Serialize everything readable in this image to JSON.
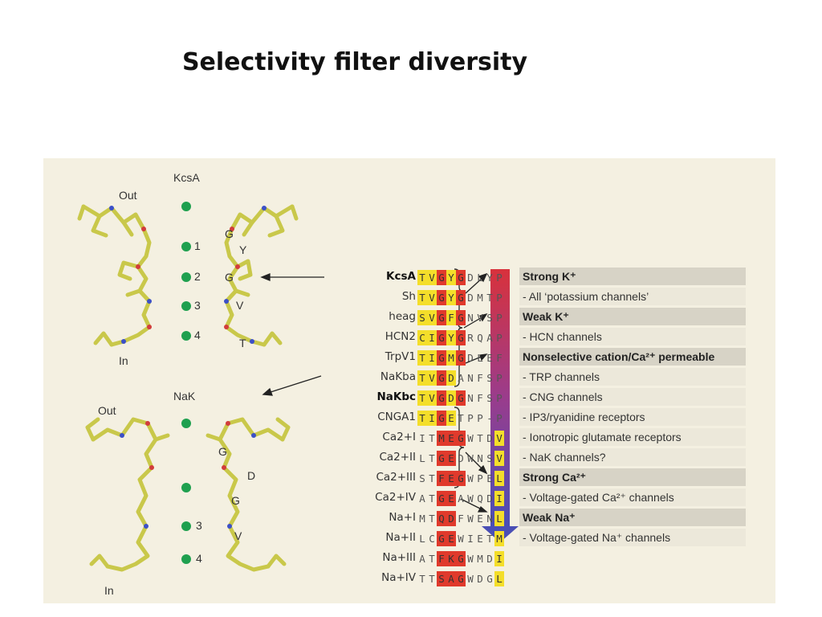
{
  "title": "Selectivity filter diversity",
  "structures": {
    "top": {
      "name": "KcsA",
      "out": "Out",
      "in": "In",
      "sites": [
        "1",
        "2",
        "3",
        "4"
      ],
      "residues": [
        "G",
        "Y",
        "G",
        "V",
        "T"
      ]
    },
    "bottom": {
      "name": "NaK",
      "out": "Out",
      "in": "In",
      "sites": [
        "3",
        "4"
      ],
      "residues": [
        "G",
        "D",
        "G",
        "V"
      ]
    }
  },
  "alignment": [
    {
      "name": "KcsA",
      "seq": "TVGYGDLYP",
      "bold": true
    },
    {
      "name": "Sh",
      "seq": "TVGYGDMTP"
    },
    {
      "name": "heag",
      "seq": "SVGFGNVSP"
    },
    {
      "name": "HCN2",
      "seq": "CIGYGRQAP"
    },
    {
      "name": "TrpV1",
      "seq": "TIGMGDLEF"
    },
    {
      "name": "NaKba",
      "seq": "TVGDANFSP"
    },
    {
      "name": "NaKbc",
      "seq": "TVGDGNFSP",
      "bold": true
    },
    {
      "name": "CNGA1",
      "seq": "TIGETPP-P"
    },
    {
      "name": "Ca2+I",
      "seq": "ITMEGWTDV"
    },
    {
      "name": "Ca2+II",
      "seq": "LTGEDWNSV"
    },
    {
      "name": "Ca2+III",
      "seq": "STFEGWPEL"
    },
    {
      "name": "Ca2+IV",
      "seq": "ATGEAWQDI"
    },
    {
      "name": "Na+I",
      "seq": "MTQDFWENL"
    },
    {
      "name": "Na+II",
      "seq": "LCGEWIETM"
    },
    {
      "name": "Na+III",
      "seq": "ATFKGWMDI"
    },
    {
      "name": "Na+IV",
      "seq": "TTSAGWDGL"
    }
  ],
  "categories": [
    {
      "text": "Strong K⁺",
      "type": "head"
    },
    {
      "text": "- All ‘potassium channels’",
      "type": "sub"
    },
    {
      "text": "Weak K⁺",
      "type": "head"
    },
    {
      "text": "- HCN channels",
      "type": "sub"
    },
    {
      "text": "Nonselective cation/Ca²⁺ permeable",
      "type": "head"
    },
    {
      "text": "- TRP channels",
      "type": "sub"
    },
    {
      "text": "- CNG channels",
      "type": "sub"
    },
    {
      "text": "- IP3/ryanidine receptors",
      "type": "sub"
    },
    {
      "text": "- Ionotropic glutamate receptors",
      "type": "sub"
    },
    {
      "text": "- NaK channels?",
      "type": "sub"
    },
    {
      "text": "Strong Ca²⁺",
      "type": "head"
    },
    {
      "text": "- Voltage-gated Ca²⁺ channels",
      "type": "sub"
    },
    {
      "text": "Weak Na⁺",
      "type": "head"
    },
    {
      "text": "- Voltage-gated Na⁺ channels",
      "type": "sub"
    }
  ],
  "colors": {
    "red": "#e03a2c",
    "yellow": "#f4de2a",
    "arrow_top": "#d8323c",
    "arrow_bottom": "#4a4fb5",
    "stick": "#c9c84a",
    "ion": "#1fa04f"
  }
}
